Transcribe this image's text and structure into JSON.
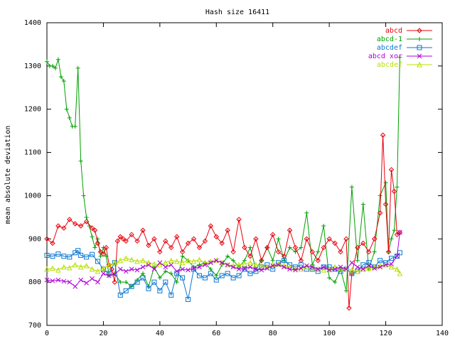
{
  "chart_data": {
    "type": "line",
    "title": "Hash size 16411",
    "xlabel": "",
    "ylabel": "mean absolute deviation",
    "xlim": [
      0,
      140
    ],
    "ylim": [
      700,
      1400
    ],
    "xticks": [
      0,
      20,
      40,
      60,
      80,
      100,
      120,
      140
    ],
    "yticks": [
      700,
      800,
      900,
      1000,
      1100,
      1200,
      1300,
      1400
    ],
    "grid": false,
    "legend_position": "top-right",
    "series": [
      {
        "name": "abcd",
        "color": "#e8000b",
        "marker": "diamond",
        "x": [
          0,
          2,
          4,
          6,
          8,
          10,
          12,
          14,
          16,
          17,
          18,
          19,
          20,
          21,
          22,
          23,
          24,
          25,
          26,
          27,
          28,
          30,
          32,
          34,
          36,
          38,
          40,
          42,
          44,
          46,
          48,
          50,
          52,
          54,
          56,
          58,
          60,
          62,
          64,
          66,
          68,
          70,
          72,
          74,
          76,
          78,
          80,
          82,
          84,
          86,
          88,
          90,
          92,
          94,
          96,
          98,
          100,
          102,
          104,
          106,
          107,
          108,
          110,
          112,
          114,
          116,
          118,
          119,
          120,
          121,
          122,
          123,
          124,
          125
        ],
        "y": [
          900,
          890,
          930,
          925,
          945,
          935,
          930,
          940,
          925,
          920,
          890,
          870,
          865,
          880,
          840,
          830,
          800,
          895,
          905,
          900,
          895,
          910,
          895,
          920,
          885,
          900,
          870,
          895,
          880,
          905,
          870,
          890,
          900,
          880,
          895,
          930,
          905,
          890,
          920,
          870,
          945,
          880,
          860,
          900,
          850,
          880,
          910,
          870,
          860,
          920,
          880,
          850,
          900,
          870,
          850,
          880,
          900,
          890,
          870,
          900,
          740,
          820,
          880,
          890,
          870,
          900,
          960,
          1140,
          980,
          870,
          1060,
          1010,
          910,
          915
        ]
      },
      {
        "name": "abcd-1",
        "color": "#00a000",
        "marker": "plus",
        "x": [
          0,
          1,
          2,
          3,
          4,
          5,
          6,
          7,
          8,
          9,
          10,
          11,
          12,
          13,
          14,
          15,
          16,
          17,
          18,
          19,
          20,
          21,
          22,
          24,
          26,
          28,
          30,
          32,
          34,
          36,
          38,
          40,
          42,
          44,
          46,
          48,
          50,
          52,
          54,
          56,
          58,
          60,
          62,
          64,
          66,
          68,
          70,
          72,
          74,
          76,
          78,
          80,
          82,
          84,
          86,
          88,
          90,
          92,
          94,
          96,
          98,
          100,
          102,
          104,
          106,
          108,
          110,
          112,
          114,
          116,
          118,
          120,
          121,
          122,
          123,
          124,
          125
        ],
        "y": [
          1310,
          1300,
          1300,
          1295,
          1315,
          1275,
          1265,
          1200,
          1180,
          1160,
          1160,
          1295,
          1080,
          1000,
          950,
          930,
          905,
          880,
          900,
          860,
          880,
          860,
          815,
          820,
          800,
          800,
          790,
          805,
          820,
          790,
          835,
          810,
          825,
          820,
          800,
          860,
          850,
          835,
          840,
          845,
          830,
          815,
          840,
          860,
          850,
          835,
          850,
          880,
          830,
          850,
          880,
          850,
          900,
          850,
          880,
          870,
          880,
          960,
          840,
          870,
          930,
          810,
          800,
          830,
          780,
          1020,
          850,
          980,
          830,
          870,
          1000,
          1030,
          870,
          900,
          920,
          1020,
          1320
        ]
      },
      {
        "name": "abcdef",
        "color": "#0a77d0",
        "marker": "square",
        "x": [
          0,
          2,
          4,
          6,
          8,
          10,
          11,
          12,
          14,
          16,
          18,
          20,
          22,
          24,
          26,
          28,
          30,
          32,
          34,
          36,
          38,
          40,
          42,
          44,
          46,
          48,
          50,
          52,
          54,
          56,
          58,
          60,
          62,
          64,
          66,
          68,
          70,
          72,
          74,
          76,
          78,
          80,
          82,
          84,
          86,
          88,
          90,
          92,
          94,
          96,
          98,
          100,
          102,
          104,
          106,
          108,
          110,
          112,
          114,
          116,
          118,
          120,
          122,
          124,
          125
        ],
        "y": [
          862,
          860,
          865,
          860,
          858,
          868,
          873,
          862,
          858,
          864,
          848,
          830,
          820,
          845,
          770,
          780,
          790,
          800,
          810,
          785,
          800,
          780,
          800,
          770,
          820,
          810,
          760,
          830,
          815,
          810,
          820,
          805,
          815,
          820,
          810,
          815,
          830,
          820,
          825,
          835,
          840,
          830,
          845,
          850,
          840,
          835,
          840,
          830,
          830,
          825,
          835,
          835,
          830,
          825,
          830,
          820,
          825,
          840,
          845,
          835,
          850,
          845,
          855,
          860,
          868
        ]
      },
      {
        "name": "abcd xor",
        "color": "#b000d8",
        "marker": "cross",
        "x": [
          0,
          2,
          4,
          6,
          8,
          10,
          12,
          14,
          16,
          18,
          20,
          22,
          24,
          26,
          28,
          30,
          32,
          34,
          36,
          38,
          40,
          42,
          44,
          46,
          48,
          50,
          52,
          54,
          56,
          58,
          60,
          62,
          64,
          66,
          68,
          70,
          72,
          74,
          76,
          78,
          80,
          82,
          84,
          86,
          88,
          90,
          92,
          94,
          96,
          98,
          100,
          102,
          104,
          106,
          108,
          110,
          112,
          114,
          116,
          118,
          120,
          122,
          124,
          125
        ],
        "y": [
          805,
          803,
          805,
          802,
          800,
          790,
          805,
          798,
          808,
          800,
          820,
          815,
          818,
          830,
          825,
          830,
          828,
          835,
          840,
          830,
          845,
          835,
          840,
          825,
          830,
          828,
          832,
          835,
          840,
          845,
          850,
          845,
          840,
          835,
          830,
          832,
          835,
          830,
          828,
          832,
          838,
          840,
          835,
          830,
          828,
          832,
          838,
          835,
          830,
          835,
          828,
          830,
          835,
          830,
          845,
          835,
          830,
          838,
          832,
          835,
          840,
          842,
          860,
          915
        ]
      },
      {
        "name": "abcdef",
        "color": "#b8e000",
        "marker": "triangle",
        "x": [
          0,
          2,
          4,
          6,
          8,
          10,
          12,
          14,
          16,
          18,
          20,
          22,
          24,
          26,
          28,
          30,
          32,
          34,
          36,
          38,
          40,
          42,
          44,
          46,
          48,
          50,
          52,
          54,
          56,
          58,
          60,
          62,
          64,
          66,
          68,
          70,
          72,
          74,
          76,
          78,
          80,
          82,
          84,
          86,
          88,
          90,
          92,
          94,
          96,
          98,
          100,
          102,
          104,
          106,
          108,
          110,
          112,
          114,
          116,
          118,
          120,
          122,
          124,
          125
        ],
        "y": [
          830,
          832,
          828,
          835,
          833,
          840,
          835,
          838,
          830,
          825,
          832,
          840,
          845,
          850,
          855,
          852,
          848,
          850,
          845,
          842,
          840,
          845,
          850,
          848,
          845,
          850,
          848,
          852,
          845,
          848,
          850,
          845,
          840,
          838,
          840,
          842,
          845,
          840,
          838,
          835,
          840,
          842,
          838,
          835,
          832,
          830,
          835,
          833,
          830,
          828,
          830,
          835,
          832,
          830,
          828,
          825,
          830,
          832,
          835,
          838,
          840,
          835,
          830,
          820
        ]
      }
    ]
  }
}
